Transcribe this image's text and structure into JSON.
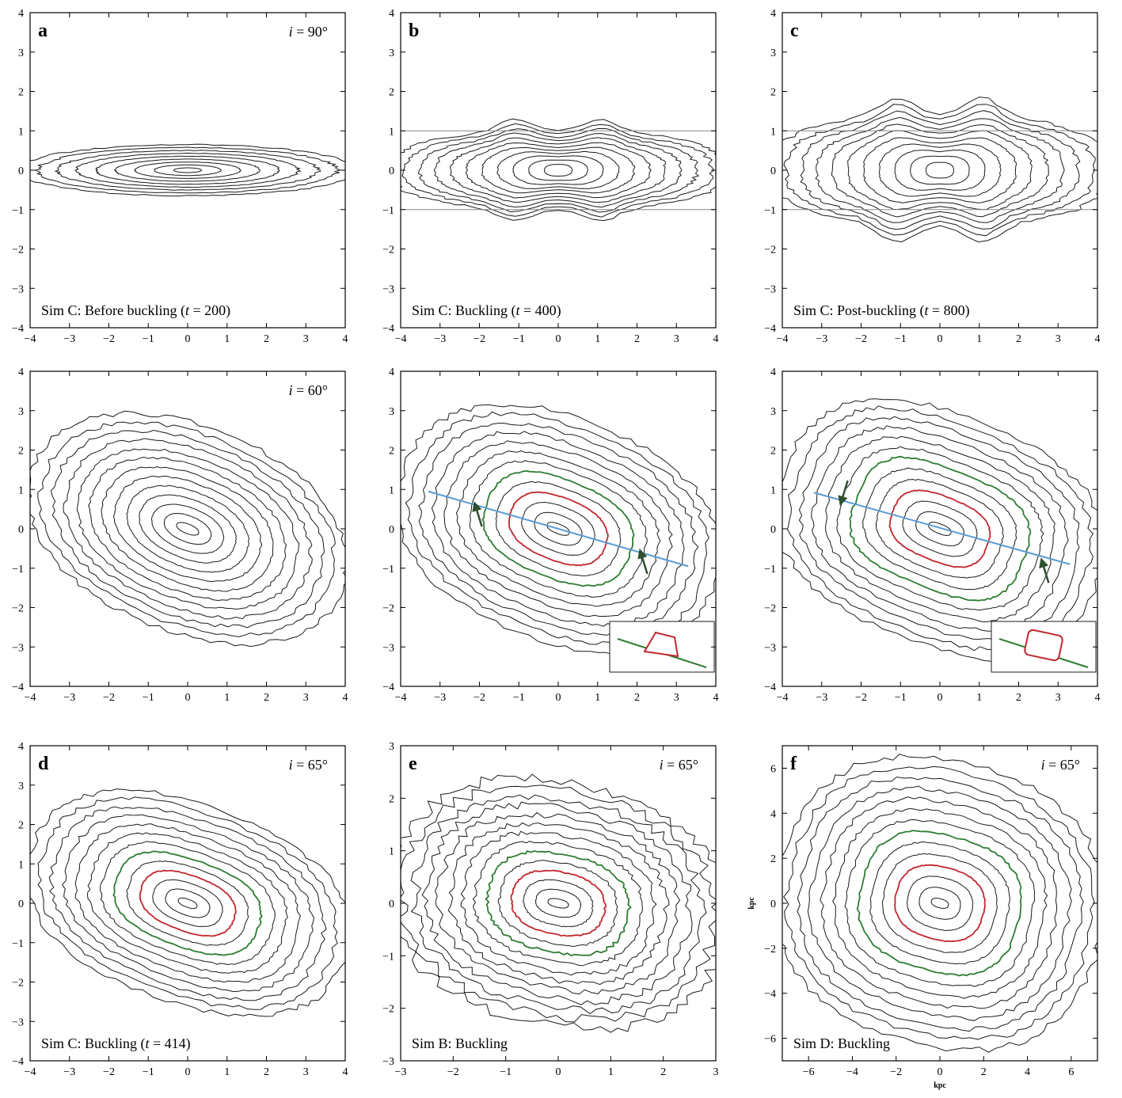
{
  "figure": {
    "colors": {
      "contour": "#1a1a1a",
      "inner": "#c1272d",
      "middle": "#2e7d32",
      "axisline": "#5b9bd5",
      "arrow": "#2f4f2f",
      "guide": "#888888"
    }
  },
  "chart_data": [
    {
      "type": "contour",
      "panel": "a",
      "letter": "a",
      "inclination": "90°",
      "caption_pre": "Sim C: Before buckling (",
      "caption_t": "t",
      "caption_post": " = 200)",
      "xlim": [
        -4,
        4
      ],
      "ylim": [
        -4,
        4
      ],
      "xticks": [
        "−4",
        "−3",
        "−2",
        "−1",
        "0",
        "1",
        "2",
        "3",
        "4"
      ],
      "yticks": [
        "−4",
        "−3",
        "−2",
        "−1",
        "0",
        "1",
        "2",
        "3",
        "4"
      ],
      "xlabel": "",
      "ylabel": "",
      "contours": {
        "n": 9,
        "max_a": 4.3,
        "min_a": 0.35,
        "max_b": 0.65,
        "min_b": 0.06,
        "pa_deg": 0,
        "box": 0.0,
        "peanut": 0.0
      },
      "guides": [],
      "bar_line": null,
      "arrows": [],
      "highlight": []
    },
    {
      "type": "contour",
      "panel": "b",
      "letter": "b",
      "inclination": "",
      "caption_pre": "Sim C: Buckling (",
      "caption_t": "t",
      "caption_post": " = 400)",
      "xlim": [
        -4,
        4
      ],
      "ylim": [
        -4,
        4
      ],
      "xticks": [
        "−4",
        "−3",
        "−2",
        "−1",
        "0",
        "1",
        "2",
        "3",
        "4"
      ],
      "yticks": [
        "−4",
        "−3",
        "−2",
        "−1",
        "0",
        "1",
        "2",
        "3",
        "4"
      ],
      "xlabel": "",
      "ylabel": "",
      "contours": {
        "n": 11,
        "max_a": 4.3,
        "min_a": 0.35,
        "max_b": 1.0,
        "min_b": 0.15,
        "pa_deg": 0,
        "box": 0.3,
        "peanut": 0.3
      },
      "guides": [
        1,
        -1
      ],
      "bar_line": null,
      "arrows": [],
      "highlight": []
    },
    {
      "type": "contour",
      "panel": "c",
      "letter": "c",
      "inclination": "",
      "caption_pre": "Sim C: Post-buckling (",
      "caption_t": "t",
      "caption_post": " = 800)",
      "xlim": [
        -4,
        4
      ],
      "ylim": [
        -4,
        4
      ],
      "xticks": [
        "−4",
        "−3",
        "−2",
        "−1",
        "0",
        "1",
        "2",
        "3",
        "4"
      ],
      "yticks": [
        "−4",
        "−3",
        "−2",
        "−1",
        "0",
        "1",
        "2",
        "3",
        "4"
      ],
      "xlabel": "",
      "ylabel": "",
      "contours": {
        "n": 11,
        "max_a": 4.3,
        "min_a": 0.35,
        "max_b": 1.4,
        "min_b": 0.2,
        "pa_deg": 0,
        "box": 0.4,
        "peanut": 0.45
      },
      "guides": [
        1,
        -1
      ],
      "bar_line": null,
      "arrows": [],
      "highlight": []
    },
    {
      "type": "contour",
      "panel": "i60a",
      "letter": "",
      "inclination": "60°",
      "caption_pre": "",
      "caption_t": "",
      "caption_post": "",
      "xlim": [
        -4,
        4
      ],
      "ylim": [
        -4,
        4
      ],
      "xticks": [
        "−4",
        "−3",
        "−2",
        "−1",
        "0",
        "1",
        "2",
        "3",
        "4"
      ],
      "yticks": [
        "−4",
        "−3",
        "−2",
        "−1",
        "0",
        "1",
        "2",
        "3",
        "4"
      ],
      "xlabel": "",
      "ylabel": "",
      "contours": {
        "n": 13,
        "max_a": 4.2,
        "min_a": 0.3,
        "max_b": 2.6,
        "min_b": 0.12,
        "pa_deg": -22,
        "box": 0.1,
        "peanut": 0.0
      },
      "guides": [],
      "bar_line": null,
      "arrows": [],
      "highlight": []
    },
    {
      "type": "contour",
      "panel": "i60b",
      "letter": "",
      "inclination": "",
      "caption_pre": "",
      "caption_t": "",
      "caption_post": "",
      "xlim": [
        -4,
        4
      ],
      "ylim": [
        -4,
        4
      ],
      "xticks": [
        "−4",
        "−3",
        "−2",
        "−1",
        "0",
        "1",
        "2",
        "3",
        "4"
      ],
      "yticks": [
        "−4",
        "−3",
        "−2",
        "−1",
        "0",
        "1",
        "2",
        "3",
        "4"
      ],
      "xlabel": "",
      "ylabel": "",
      "contours": {
        "n": 13,
        "max_a": 4.2,
        "min_a": 0.3,
        "max_b": 2.8,
        "min_b": 0.12,
        "pa_deg": -22,
        "box": 0.25,
        "peanut": 0.0
      },
      "guides": [],
      "bar_line": {
        "x1": -3.3,
        "y1": 0.95,
        "x2": 3.3,
        "y2": -0.95
      },
      "arrows": [
        {
          "x": -2.1,
          "y": 0.58,
          "dir": "down"
        },
        {
          "x": 2.1,
          "y": -0.62,
          "dir": "down"
        }
      ],
      "highlight": [
        {
          "color": "red",
          "level": 9
        },
        {
          "color": "green",
          "level": 7
        }
      ],
      "inset": {
        "shape": "trapezoid"
      }
    },
    {
      "type": "contour",
      "panel": "i60c",
      "letter": "",
      "inclination": "",
      "caption_pre": "",
      "caption_t": "",
      "caption_post": "",
      "xlim": [
        -4,
        4
      ],
      "ylim": [
        -4,
        4
      ],
      "xticks": [
        "−4",
        "−3",
        "−2",
        "−1",
        "0",
        "1",
        "2",
        "3",
        "4"
      ],
      "yticks": [
        "−4",
        "−3",
        "−2",
        "−1",
        "0",
        "1",
        "2",
        "3",
        "4"
      ],
      "xlabel": "",
      "ylabel": "",
      "contours": {
        "n": 13,
        "max_a": 4.2,
        "min_a": 0.3,
        "max_b": 2.9,
        "min_b": 0.12,
        "pa_deg": -22,
        "box": 0.4,
        "peanut": 0.0
      },
      "guides": [],
      "bar_line": {
        "x1": -3.2,
        "y1": 0.92,
        "x2": 3.3,
        "y2": -0.9
      },
      "arrows": [
        {
          "x": -2.5,
          "y": 0.7,
          "dir": "up"
        },
        {
          "x": 2.6,
          "y": -0.85,
          "dir": "down"
        }
      ],
      "highlight": [
        {
          "color": "red",
          "level": 9
        },
        {
          "color": "green",
          "level": 6
        }
      ],
      "inset": {
        "shape": "box"
      }
    },
    {
      "type": "contour",
      "panel": "d",
      "letter": "d",
      "inclination": "65°",
      "caption_pre": "Sim C: Buckling (",
      "caption_t": "t",
      "caption_post": " = 414)",
      "xlim": [
        -4,
        4
      ],
      "ylim": [
        -4,
        4
      ],
      "xticks": [
        "−4",
        "−3",
        "−2",
        "−1",
        "0",
        "1",
        "2",
        "3",
        "4"
      ],
      "yticks": [
        "−4",
        "−3",
        "−2",
        "−1",
        "0",
        "1",
        "2",
        "3",
        "4"
      ],
      "xlabel": "",
      "ylabel": "",
      "contours": {
        "n": 13,
        "max_a": 4.2,
        "min_a": 0.25,
        "max_b": 2.5,
        "min_b": 0.1,
        "pa_deg": -20,
        "box": 0.25,
        "peanut": 0.0
      },
      "guides": [],
      "bar_line": null,
      "arrows": [],
      "highlight": [
        {
          "color": "red",
          "level": 9
        },
        {
          "color": "green",
          "level": 7
        }
      ]
    },
    {
      "type": "contour",
      "panel": "e",
      "letter": "e",
      "inclination": "65°",
      "caption_pre": "Sim B: Buckling",
      "caption_t": "",
      "caption_post": "",
      "xlim": [
        -3,
        3
      ],
      "ylim": [
        -3,
        3
      ],
      "xticks": [
        "−3",
        "−2",
        "−1",
        "0",
        "1",
        "2",
        "3"
      ],
      "yticks": [
        "−3",
        "−2",
        "−1",
        "0",
        "1",
        "2",
        "3"
      ],
      "xlabel": "",
      "ylabel": "",
      "contours": {
        "n": 14,
        "max_a": 3.2,
        "min_a": 0.2,
        "max_b": 2.3,
        "min_b": 0.08,
        "pa_deg": -12,
        "box": 0.2,
        "peanut": 0.0
      },
      "guides": [],
      "bar_line": null,
      "arrows": [],
      "highlight": [
        {
          "color": "red",
          "level": 10
        },
        {
          "color": "green",
          "level": 8
        }
      ]
    },
    {
      "type": "contour",
      "panel": "f",
      "letter": "f",
      "inclination": "65°",
      "caption_pre": "Sim D: Buckling",
      "caption_t": "",
      "caption_post": "",
      "xlim": [
        -7.2,
        7.2
      ],
      "ylim": [
        -7,
        7
      ],
      "xticks": [
        "−6",
        "−4",
        "−2",
        "0",
        "2",
        "4",
        "6"
      ],
      "xtick_vals": [
        -6,
        -4,
        -2,
        0,
        2,
        4,
        6
      ],
      "yticks": [
        "−6",
        "−4",
        "−2",
        "0",
        "2",
        "4",
        "6"
      ],
      "ytick_vals": [
        -6,
        -4,
        -2,
        0,
        2,
        4,
        6
      ],
      "xlabel": "kpc",
      "ylabel": "kpc",
      "contours": {
        "n": 14,
        "max_a": 7.5,
        "min_a": 0.4,
        "max_b": 6.3,
        "min_b": 0.2,
        "pa_deg": -15,
        "box": 0.25,
        "peanut": 0.0
      },
      "guides": [],
      "bar_line": null,
      "arrows": [],
      "highlight": [
        {
          "color": "red",
          "level": 10
        },
        {
          "color": "green",
          "level": 7
        }
      ]
    }
  ]
}
